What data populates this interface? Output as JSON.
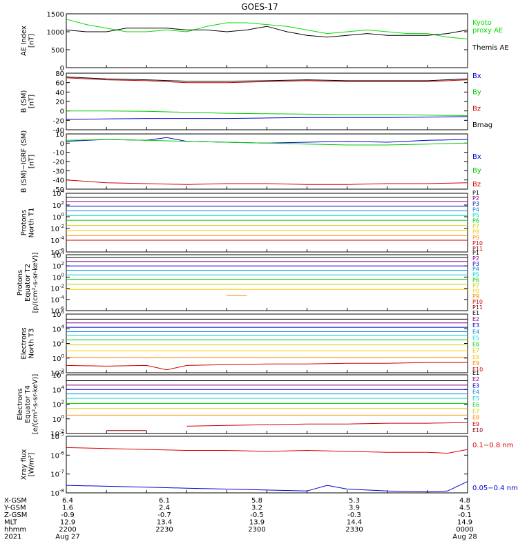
{
  "title": "GOES-17",
  "chart_data": [
    {
      "type": "line",
      "ylabel": [
        "AE Index",
        "[nT]"
      ],
      "ylim": [
        0,
        1500
      ],
      "log": false,
      "ticks": [
        "0",
        "500",
        "1000",
        "1500"
      ],
      "tick_values": [
        0,
        500,
        1000,
        1500
      ],
      "series": [
        {
          "name": "Kyoto\nproxy AE",
          "color": "#00dd00",
          "x": [
            0,
            0.05,
            0.1,
            0.15,
            0.2,
            0.25,
            0.3,
            0.35,
            0.4,
            0.45,
            0.5,
            0.55,
            0.6,
            0.65,
            0.7,
            0.75,
            0.8,
            0.85,
            0.9,
            0.95,
            1.0
          ],
          "y": [
            1350,
            1200,
            1100,
            1000,
            1000,
            1050,
            1000,
            1150,
            1250,
            1250,
            1200,
            1150,
            1050,
            950,
            1000,
            1050,
            1000,
            950,
            950,
            850,
            800
          ]
        },
        {
          "name": "Themis AE",
          "color": "#000000",
          "x": [
            0,
            0.05,
            0.1,
            0.15,
            0.2,
            0.25,
            0.3,
            0.35,
            0.4,
            0.45,
            0.5,
            0.55,
            0.6,
            0.65,
            0.7,
            0.75,
            0.8,
            0.85,
            0.9,
            0.95,
            1.0
          ],
          "y": [
            1050,
            1000,
            1000,
            1100,
            1100,
            1100,
            1050,
            1050,
            1000,
            1050,
            1150,
            1000,
            900,
            850,
            900,
            950,
            900,
            900,
            900,
            950,
            1050
          ]
        }
      ]
    },
    {
      "type": "line",
      "ylabel": [
        "B (SM)",
        "[nT]"
      ],
      "ylim": [
        -40,
        80
      ],
      "log": false,
      "ticks": [
        "-40",
        "-20",
        "0",
        "20",
        "40",
        "60",
        "80"
      ],
      "tick_values": [
        -40,
        -20,
        0,
        20,
        40,
        60,
        80
      ],
      "series": [
        {
          "name": "Bx",
          "color": "#0000cc",
          "x": [
            0,
            0.1,
            0.2,
            0.3,
            0.4,
            0.5,
            0.6,
            0.7,
            0.8,
            0.9,
            1.0
          ],
          "y": [
            -18,
            -17,
            -16,
            -16,
            -16,
            -15,
            -14,
            -14,
            -14,
            -13,
            -12
          ]
        },
        {
          "name": "By",
          "color": "#00cc00",
          "x": [
            0,
            0.1,
            0.2,
            0.3,
            0.4,
            0.5,
            0.6,
            0.7,
            0.8,
            0.9,
            1.0
          ],
          "y": [
            0,
            0,
            -1,
            -3,
            -5,
            -6,
            -7,
            -8,
            -8,
            -9,
            -10
          ]
        },
        {
          "name": "Bz",
          "color": "#cc0000",
          "x": [
            0,
            0.1,
            0.2,
            0.3,
            0.4,
            0.5,
            0.6,
            0.7,
            0.8,
            0.9,
            1.0
          ],
          "y": [
            70,
            66,
            64,
            60,
            60,
            62,
            64,
            62,
            62,
            62,
            66
          ]
        },
        {
          "name": "Bmag",
          "color": "#000000",
          "x": [
            0,
            0.1,
            0.2,
            0.3,
            0.4,
            0.5,
            0.6,
            0.7,
            0.8,
            0.9,
            1.0
          ],
          "y": [
            72,
            68,
            66,
            63,
            63,
            64,
            66,
            64,
            64,
            64,
            68
          ]
        }
      ]
    },
    {
      "type": "line",
      "ylabel": [
        "B (SM)−IGRF (SM)",
        "[nT]"
      ],
      "ylim": [
        -50,
        10
      ],
      "log": false,
      "ticks": [
        "-50",
        "-40",
        "-30",
        "-20",
        "-10",
        "0",
        "10"
      ],
      "tick_values": [
        -50,
        -40,
        -30,
        -20,
        -10,
        0,
        10
      ],
      "series": [
        {
          "name": "Bx",
          "color": "#0000cc",
          "x": [
            0,
            0.1,
            0.2,
            0.25,
            0.3,
            0.4,
            0.5,
            0.6,
            0.7,
            0.8,
            0.9,
            1.0
          ],
          "y": [
            2,
            4,
            3,
            6,
            2,
            1,
            0,
            1,
            2,
            1,
            3,
            4
          ]
        },
        {
          "name": "By",
          "color": "#00cc00",
          "x": [
            0,
            0.1,
            0.2,
            0.3,
            0.4,
            0.5,
            0.6,
            0.7,
            0.8,
            0.9,
            1.0
          ],
          "y": [
            3,
            4,
            3,
            2,
            1,
            0,
            -1,
            -2,
            -2,
            -1,
            0
          ]
        },
        {
          "name": "Bz",
          "color": "#cc0000",
          "x": [
            0,
            0.1,
            0.2,
            0.3,
            0.4,
            0.5,
            0.6,
            0.7,
            0.8,
            0.9,
            1.0
          ],
          "y": [
            -40,
            -43,
            -44,
            -45,
            -44,
            -44,
            -45,
            -45,
            -44,
            -44,
            -43
          ]
        }
      ]
    },
    {
      "type": "line",
      "ylabel": [
        "Protons",
        "North T1"
      ],
      "ylim": [
        -6,
        4
      ],
      "log": true,
      "ticks": [
        "10^-6",
        "10^-4",
        "10^-2",
        "10^0",
        "10^2",
        "10^4"
      ],
      "tick_values": [
        -6,
        -4,
        -2,
        0,
        2,
        4
      ],
      "series": [
        {
          "name": "P1",
          "color": "#000000",
          "x": [
            0,
            1
          ],
          "y": [
            3.3,
            3.3
          ]
        },
        {
          "name": "P2",
          "color": "#880088",
          "x": [
            0,
            1
          ],
          "y": [
            2.6,
            2.6
          ]
        },
        {
          "name": "P3",
          "color": "#0000cc",
          "x": [
            0,
            1
          ],
          "y": [
            1.8,
            1.8
          ]
        },
        {
          "name": "P4",
          "color": "#0088dd",
          "x": [
            0,
            1
          ],
          "y": [
            1.0,
            1.0
          ]
        },
        {
          "name": "P5",
          "color": "#00cccc",
          "x": [
            0,
            1
          ],
          "y": [
            0.2,
            0.2
          ]
        },
        {
          "name": "P6",
          "color": "#00cc00",
          "x": [
            0,
            1
          ],
          "y": [
            -0.6,
            -0.6
          ]
        },
        {
          "name": "P7",
          "color": "#cccc00",
          "x": [
            0,
            1
          ],
          "y": [
            -1.5,
            -1.5
          ]
        },
        {
          "name": "P8",
          "color": "#ffcc00",
          "x": [
            0,
            1
          ],
          "y": [
            -2.3,
            -2.3
          ]
        },
        {
          "name": "P9",
          "color": "#ff8800",
          "x": [
            0,
            1
          ],
          "y": [
            -3.2,
            -3.2
          ]
        },
        {
          "name": "P10",
          "color": "#cc0000",
          "x": [
            0,
            1
          ],
          "y": [
            -4.0,
            -4.0
          ]
        },
        {
          "name": "P11",
          "color": "#880000",
          "x": [],
          "y": []
        }
      ]
    },
    {
      "type": "line",
      "ylabel": [
        "Protons",
        "Equator T2",
        "[p/(cm²-s-sr-keV)]"
      ],
      "ylim": [
        -6,
        4
      ],
      "log": true,
      "ticks": [
        "10^-6",
        "10^-4",
        "10^-2",
        "10^0",
        "10^2",
        "10^4"
      ],
      "tick_values": [
        -6,
        -4,
        -2,
        0,
        2,
        4
      ],
      "series": [
        {
          "name": "P1",
          "color": "#000000",
          "x": [
            0,
            1
          ],
          "y": [
            3.5,
            3.5
          ]
        },
        {
          "name": "P2",
          "color": "#880088",
          "x": [
            0,
            1
          ],
          "y": [
            2.8,
            2.8
          ]
        },
        {
          "name": "P3",
          "color": "#0000cc",
          "x": [
            0,
            1
          ],
          "y": [
            2.0,
            2.0
          ]
        },
        {
          "name": "P4",
          "color": "#0088dd",
          "x": [
            0,
            1
          ],
          "y": [
            1.2,
            1.2
          ]
        },
        {
          "name": "P5",
          "color": "#00cccc",
          "x": [
            0,
            1
          ],
          "y": [
            0.4,
            0.4
          ]
        },
        {
          "name": "P6",
          "color": "#00cc00",
          "x": [
            0,
            1
          ],
          "y": [
            -0.4,
            -0.4
          ]
        },
        {
          "name": "P7",
          "color": "#cccc00",
          "x": [
            0,
            1
          ],
          "y": [
            -1.3,
            -1.3
          ]
        },
        {
          "name": "P8",
          "color": "#ffcc00",
          "x": [
            0,
            1
          ],
          "y": [
            -2.2,
            -2.2
          ]
        },
        {
          "name": "P9",
          "color": "#ff8800",
          "x": [
            0.4,
            0.45
          ],
          "y": [
            -3.3,
            -3.3
          ]
        },
        {
          "name": "P10",
          "color": "#cc0000",
          "x": [],
          "y": []
        },
        {
          "name": "P11",
          "color": "#880000",
          "x": [],
          "y": []
        }
      ]
    },
    {
      "type": "line",
      "ylabel": [
        "Electrons",
        "North T3"
      ],
      "ylim": [
        -2,
        6
      ],
      "log": true,
      "ticks": [
        "10^-2",
        "10^0",
        "10^2",
        "10^4",
        "10^6"
      ],
      "tick_values": [
        -2,
        0,
        2,
        4,
        6
      ],
      "series": [
        {
          "name": "E1",
          "color": "#000000",
          "x": [
            0,
            1
          ],
          "y": [
            5.3,
            5.3
          ]
        },
        {
          "name": "E2",
          "color": "#880088",
          "x": [
            0,
            1
          ],
          "y": [
            4.8,
            4.8
          ]
        },
        {
          "name": "E3",
          "color": "#0000cc",
          "x": [
            0,
            1
          ],
          "y": [
            4.2,
            4.2
          ]
        },
        {
          "name": "E4",
          "color": "#0088dd",
          "x": [
            0,
            1
          ],
          "y": [
            3.6,
            3.6
          ]
        },
        {
          "name": "E5",
          "color": "#00cccc",
          "x": [
            0,
            1
          ],
          "y": [
            3.1,
            3.1
          ]
        },
        {
          "name": "E6",
          "color": "#00cc00",
          "x": [
            0,
            1
          ],
          "y": [
            2.5,
            2.5
          ]
        },
        {
          "name": "E7",
          "color": "#cccc00",
          "x": [
            0,
            1
          ],
          "y": [
            1.8,
            1.8
          ]
        },
        {
          "name": "E8",
          "color": "#ffcc00",
          "x": [
            0,
            1
          ],
          "y": [
            1.0,
            1.0
          ]
        },
        {
          "name": "E9",
          "color": "#ff8800",
          "x": [
            0,
            1
          ],
          "y": [
            0.1,
            0.1
          ]
        },
        {
          "name": "E10",
          "color": "#cc0000",
          "x": [
            0,
            0.1,
            0.2,
            0.25,
            0.3,
            0.4,
            0.5,
            0.6,
            0.7,
            0.8,
            0.9,
            1.0
          ],
          "y": [
            -1.0,
            -1.1,
            -1.0,
            -1.6,
            -1.0,
            -0.9,
            -0.8,
            -0.8,
            -0.7,
            -0.7,
            -0.6,
            -0.6
          ]
        }
      ]
    },
    {
      "type": "line",
      "ylabel": [
        "Electrons",
        "Equator T4",
        "[e/(cm²-s-sr-keV)]"
      ],
      "ylim": [
        -2,
        6
      ],
      "log": true,
      "ticks": [
        "10^-2",
        "10^0",
        "10^2",
        "10^4",
        "10^6"
      ],
      "tick_values": [
        -2,
        0,
        2,
        4,
        6
      ],
      "series": [
        {
          "name": "E1",
          "color": "#000000",
          "x": [
            0,
            1
          ],
          "y": [
            5.2,
            5.2
          ]
        },
        {
          "name": "E2",
          "color": "#880088",
          "x": [
            0,
            1
          ],
          "y": [
            4.6,
            4.6
          ]
        },
        {
          "name": "E3",
          "color": "#0000cc",
          "x": [
            0,
            1
          ],
          "y": [
            4.0,
            4.0
          ]
        },
        {
          "name": "E4",
          "color": "#0088dd",
          "x": [
            0,
            1
          ],
          "y": [
            3.4,
            3.4
          ]
        },
        {
          "name": "E5",
          "color": "#00cccc",
          "x": [
            0,
            1
          ],
          "y": [
            2.8,
            2.8
          ]
        },
        {
          "name": "E6",
          "color": "#00cc00",
          "x": [
            0,
            1
          ],
          "y": [
            2.1,
            2.1
          ]
        },
        {
          "name": "E7",
          "color": "#cccc00",
          "x": [
            0,
            1
          ],
          "y": [
            1.4,
            1.4
          ]
        },
        {
          "name": "E8",
          "color": "#ff8800",
          "x": [
            0,
            1
          ],
          "y": [
            0.5,
            0.5
          ]
        },
        {
          "name": "E9",
          "color": "#cc0000",
          "x": [
            0.3,
            0.4,
            0.5,
            0.6,
            0.7,
            0.8,
            0.9,
            1.0
          ],
          "y": [
            -1.0,
            -0.9,
            -0.8,
            -0.7,
            -0.7,
            -0.6,
            -0.6,
            -0.5
          ]
        },
        {
          "name": "E10",
          "color": "#880000",
          "x": [
            0.1,
            0.2
          ],
          "y": [
            -1.6,
            -1.6
          ]
        }
      ]
    },
    {
      "type": "line",
      "ylabel": [
        "Xray flux",
        "[W/m²]"
      ],
      "ylim": [
        -8,
        -5
      ],
      "log": true,
      "ticks": [
        "10^-8",
        "10^-7",
        "10^-6",
        "10^-5"
      ],
      "tick_values": [
        -8,
        -7,
        -6,
        -5
      ],
      "series": [
        {
          "name": "0.1−0.8 nm",
          "color": "#dd0000",
          "x": [
            0,
            0.1,
            0.2,
            0.3,
            0.4,
            0.5,
            0.6,
            0.7,
            0.8,
            0.9,
            0.95,
            1.0
          ],
          "y": [
            -5.6,
            -5.65,
            -5.7,
            -5.75,
            -5.75,
            -5.8,
            -5.75,
            -5.8,
            -5.85,
            -5.85,
            -5.9,
            -5.7
          ]
        },
        {
          "name": "0.05−0.4 nm",
          "color": "#0000cc",
          "x": [
            0,
            0.1,
            0.2,
            0.3,
            0.4,
            0.5,
            0.6,
            0.65,
            0.7,
            0.8,
            0.9,
            0.95,
            1.0
          ],
          "y": [
            -7.6,
            -7.65,
            -7.7,
            -7.75,
            -7.8,
            -7.85,
            -7.9,
            -7.6,
            -7.8,
            -7.9,
            -7.95,
            -7.9,
            -7.4
          ]
        }
      ]
    }
  ],
  "footer": {
    "rows": [
      {
        "label": "X-GSM",
        "values": [
          "6.4",
          "6.1",
          "5.8",
          "5.3",
          "4.8"
        ]
      },
      {
        "label": "Y-GSM",
        "values": [
          "1.6",
          "2.4",
          "3.2",
          "3.9",
          "4.5"
        ]
      },
      {
        "label": "Z-GSM",
        "values": [
          "-0.9",
          "-0.7",
          "-0.5",
          "-0.3",
          "-0.1"
        ]
      },
      {
        "label": "MLT",
        "values": [
          "12.9",
          "13.4",
          "13.9",
          "14.4",
          "14.9"
        ]
      },
      {
        "label": "hhmm",
        "values": [
          "2200",
          "2230",
          "2300",
          "2330",
          "0000"
        ]
      },
      {
        "label": "2021",
        "values": [
          "Aug 27",
          "",
          "",
          "",
          "Aug 28"
        ]
      }
    ]
  }
}
